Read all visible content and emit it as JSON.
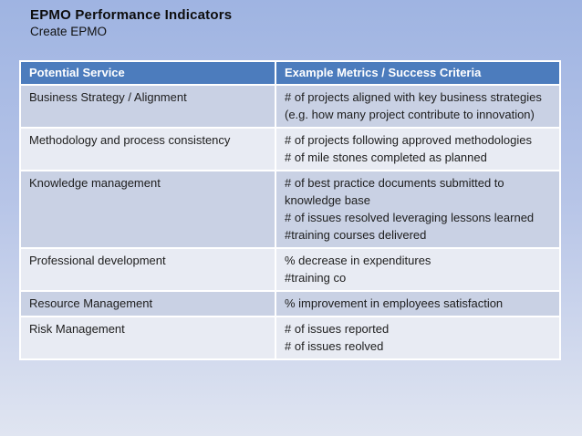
{
  "slide": {
    "title": "EPMO Performance Indicators",
    "subtitle": "Create EPMO"
  },
  "table": {
    "header": {
      "col1": "Potential Service",
      "col2": "Example Metrics / Success Criteria"
    },
    "rows": [
      {
        "service": "Business Strategy / Alignment",
        "metrics": "# of projects aligned with key business strategies (e.g. how many project contribute to innovation)"
      },
      {
        "service": "Methodology and process consistency",
        "metrics": "# of projects following approved methodologies\n# of mile stones completed as planned"
      },
      {
        "service": "Knowledge management",
        "metrics": "# of best practice documents submitted to knowledge base\n# of issues resolved leveraging lessons learned\n#training courses delivered"
      },
      {
        "service": "Professional development",
        "metrics": "% decrease in expenditures\n#training co"
      },
      {
        "service": "Resource Management",
        "metrics": "% improvement in employees satisfaction"
      },
      {
        "service": "Risk Management",
        "metrics": "# of issues reported\n# of issues reolved"
      }
    ]
  },
  "colors": {
    "background_top": "#9fb4e2",
    "background_bottom": "#e0e5f1",
    "header_background": "#4c7cbd",
    "header_text": "#ffffff",
    "row_band_dark": "#c9d1e4",
    "row_band_light": "#e8ebf3",
    "body_text": "#1d1d1d",
    "title_text": "#0d0d0d",
    "cell_border": "#ffffff"
  }
}
